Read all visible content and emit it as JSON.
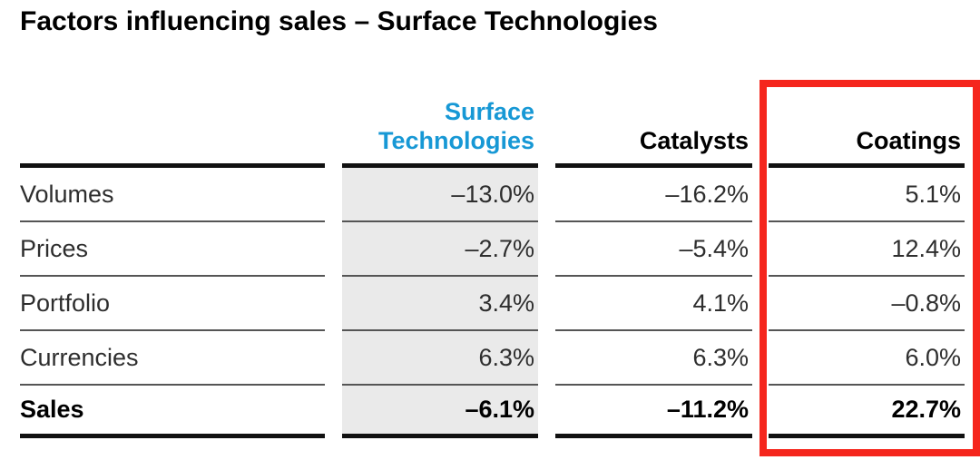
{
  "title": "Factors influencing sales – Surface Technologies",
  "colors": {
    "accent_blue": "#1798d5",
    "highlight_red": "#f5261d",
    "column_gray": "#eaeaea",
    "rule_dark": "#111111",
    "rule_thin": "#555555"
  },
  "table": {
    "column_headers": {
      "surface_technologies": "Surface Technologies",
      "catalysts": "Catalysts",
      "coatings": "Coatings"
    },
    "rows": [
      {
        "label": "Volumes",
        "surface_technologies": "–13.0%",
        "catalysts": "–16.2%",
        "coatings": "5.1%"
      },
      {
        "label": "Prices",
        "surface_technologies": "–2.7%",
        "catalysts": "–5.4%",
        "coatings": "12.4%"
      },
      {
        "label": "Portfolio",
        "surface_technologies": "3.4%",
        "catalysts": "4.1%",
        "coatings": "–0.8%"
      },
      {
        "label": "Currencies",
        "surface_technologies": "6.3%",
        "catalysts": "6.3%",
        "coatings": "6.0%"
      },
      {
        "label": "Sales",
        "surface_technologies": "–6.1%",
        "catalysts": "–11.2%",
        "coatings": "22.7%"
      }
    ],
    "highlight": {
      "highlighted_column": "Coatings"
    }
  }
}
